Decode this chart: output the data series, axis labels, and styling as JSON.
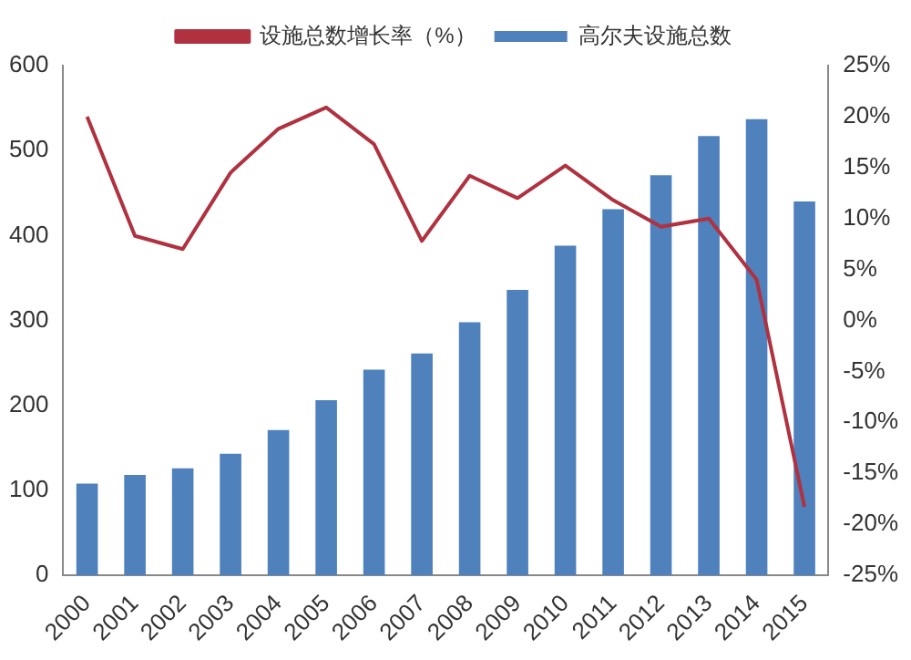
{
  "chart_data": {
    "type": "bar",
    "categories": [
      "2000",
      "2001",
      "2002",
      "2003",
      "2004",
      "2005",
      "2006",
      "2007",
      "2008",
      "2009",
      "2010",
      "2011",
      "2012",
      "2013",
      "2014",
      "2015"
    ],
    "series": [
      {
        "name": "高尔夫设施总数",
        "color": "#4f81bd",
        "values": [
          108,
          118,
          126,
          143,
          171,
          206,
          242,
          261,
          298,
          336,
          388,
          431,
          471,
          517,
          537,
          440
        ]
      },
      {
        "name": "设施总数增长率（%）",
        "type": "line",
        "axis": "y2",
        "color": "#b0313f",
        "values": [
          20,
          8.3,
          7,
          14.5,
          18.8,
          20.9,
          17.3,
          7.8,
          14.2,
          12,
          15.2,
          11.8,
          9.2,
          10,
          4,
          -18.3
        ]
      }
    ],
    "ylim": [
      0,
      600
    ],
    "yticks": [
      0,
      100,
      200,
      300,
      400,
      500,
      600
    ],
    "y2lim": [
      -25,
      25
    ],
    "y2ticks": [
      {
        "value": -25,
        "label": "-25%"
      },
      {
        "value": -20,
        "label": "-20%"
      },
      {
        "value": -15,
        "label": "-15%"
      },
      {
        "value": -10,
        "label": "-10%"
      },
      {
        "value": -5,
        "label": "-5%"
      },
      {
        "value": 0,
        "label": "0%"
      },
      {
        "value": 5,
        "label": "5%"
      },
      {
        "value": 10,
        "label": "10%"
      },
      {
        "value": 15,
        "label": "15%"
      },
      {
        "value": 20,
        "label": "20%"
      },
      {
        "value": 25,
        "label": "25%"
      }
    ],
    "grid": false,
    "legend": "top",
    "marker": "none"
  }
}
